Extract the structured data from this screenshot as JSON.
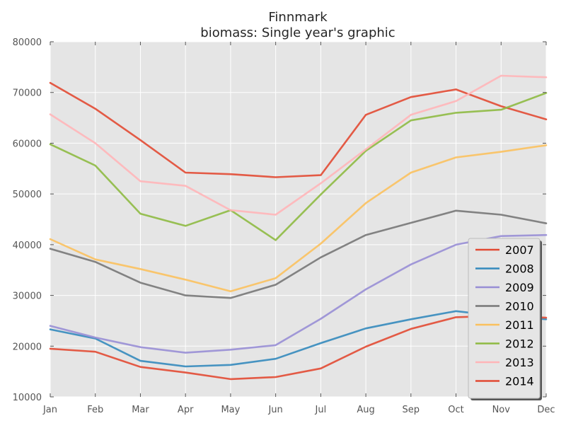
{
  "chart_data": {
    "type": "line",
    "title": "Finnmark",
    "subtitle": "biomass: Single year's graphic",
    "xlabel": "",
    "ylabel": "",
    "categories": [
      "Jan",
      "Feb",
      "Mar",
      "Apr",
      "May",
      "Jun",
      "Jul",
      "Aug",
      "Sep",
      "Oct",
      "Nov",
      "Dec"
    ],
    "ylim": [
      10000,
      80000
    ],
    "yticks": [
      10000,
      20000,
      30000,
      40000,
      50000,
      60000,
      70000,
      80000
    ],
    "grid": true,
    "legend_position": "lower-right",
    "colors": {
      "background": "#e5e5e5",
      "grid": "#ffffff"
    },
    "series": [
      {
        "name": "2007",
        "color": "#e24a33",
        "values": [
          71900,
          66800,
          60600,
          54200,
          53900,
          53300,
          53700,
          65600,
          69100,
          70600,
          67300,
          64700
        ]
      },
      {
        "name": "2008",
        "color": "#348abd",
        "values": [
          23300,
          21500,
          17100,
          16000,
          16300,
          17500,
          20600,
          23500,
          25300,
          26900,
          25900,
          25300
        ]
      },
      {
        "name": "2009",
        "color": "#988ed5",
        "values": [
          24000,
          21700,
          19800,
          18700,
          19300,
          20200,
          25400,
          31200,
          36100,
          40000,
          41700,
          41900
        ]
      },
      {
        "name": "2010",
        "color": "#777777",
        "values": [
          39200,
          36600,
          32500,
          30000,
          29500,
          32100,
          37500,
          41900,
          44300,
          46700,
          45900,
          44200
        ]
      },
      {
        "name": "2011",
        "color": "#fbc15e",
        "values": [
          41100,
          37100,
          35200,
          33100,
          30800,
          33400,
          40200,
          48200,
          54200,
          57200,
          58300,
          59600
        ]
      },
      {
        "name": "2012",
        "color": "#8eba42",
        "values": [
          59800,
          55600,
          46100,
          43700,
          46800,
          40900,
          49900,
          58500,
          64500,
          66000,
          66600,
          69900
        ]
      },
      {
        "name": "2013",
        "color": "#ffb5b8",
        "values": [
          65700,
          60000,
          52500,
          51600,
          46800,
          45900,
          52100,
          58800,
          65600,
          68300,
          73300,
          73000
        ]
      },
      {
        "name": "2014",
        "color": "#e24a33",
        "values": [
          19500,
          18900,
          15900,
          14800,
          13500,
          13900,
          15600,
          19900,
          23400,
          25700,
          26000,
          25600
        ]
      }
    ]
  }
}
